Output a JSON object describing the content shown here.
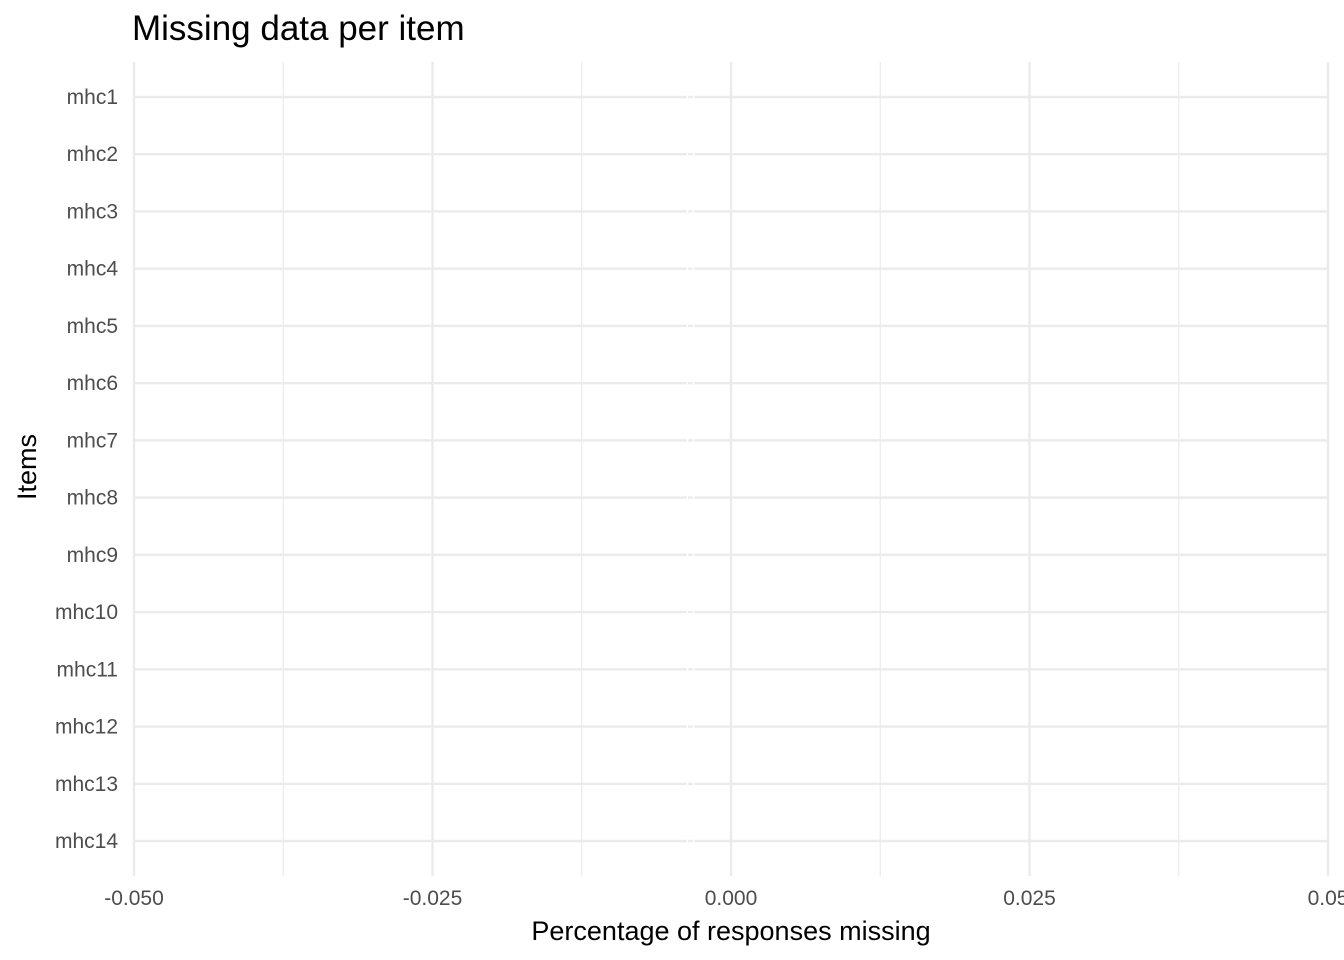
{
  "chart_data": {
    "type": "bar",
    "orientation": "horizontal",
    "title": "Missing data per item",
    "xlabel": "Percentage of responses missing",
    "ylabel": "Items",
    "categories": [
      "mhc1",
      "mhc2",
      "mhc3",
      "mhc4",
      "mhc5",
      "mhc6",
      "mhc7",
      "mhc8",
      "mhc9",
      "mhc10",
      "mhc11",
      "mhc12",
      "mhc13",
      "mhc14"
    ],
    "values": [
      0,
      0,
      0,
      0,
      0,
      0,
      0,
      0,
      0,
      0,
      0,
      0,
      0,
      0
    ],
    "xlim": [
      -0.05,
      0.05
    ],
    "x_ticks": [
      -0.05,
      -0.025,
      0,
      0.025,
      0.05
    ],
    "x_tick_labels": [
      "-0.050",
      "-0.025",
      "0.000",
      "0.025",
      "0.05"
    ],
    "x_minor_ticks": [
      -0.0375,
      -0.0125,
      0.0125,
      0.0375
    ],
    "grid": true,
    "bar_color": "#ffffff",
    "grid_color": "#ebebeb",
    "text_color": "#4d4d4d"
  }
}
